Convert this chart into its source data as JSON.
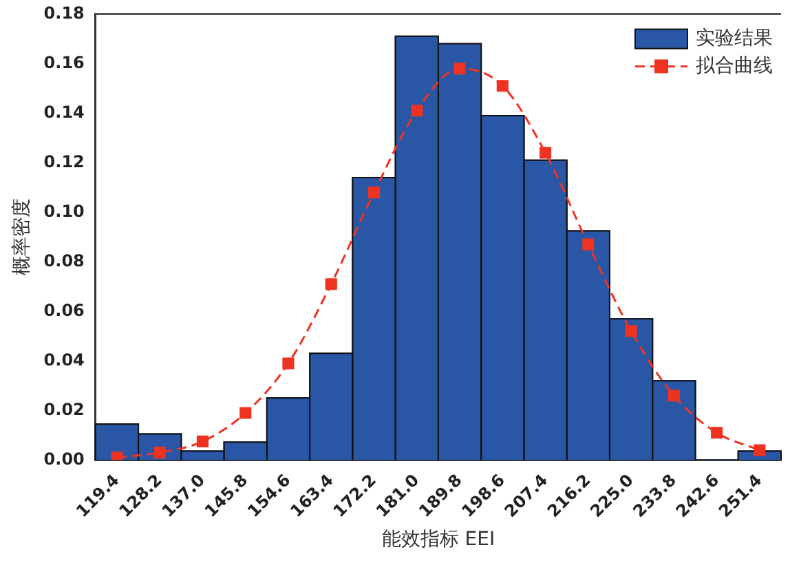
{
  "chart_data": {
    "type": "histogram",
    "xlabel": "能效指标 EEI",
    "ylabel": "概率密度",
    "bins": [
      115,
      123.8,
      132.6,
      141.4,
      150.2,
      159,
      167.8,
      176.6,
      185.4,
      194.2,
      203,
      211.8,
      220.6,
      229.4,
      238.2,
      247,
      255.8
    ],
    "series": [
      {
        "name": "实验结果",
        "color": "#2a56a6",
        "values": [
          0.0145,
          0.0105,
          0.0036,
          0.0072,
          0.025,
          0.043,
          0.114,
          0.171,
          0.168,
          0.139,
          0.121,
          0.0925,
          0.057,
          0.032,
          0,
          0.0036
        ]
      },
      {
        "name": "拟合曲线",
        "type": "line",
        "color": "#ee3322",
        "marker": "square",
        "line_style": "dashed",
        "x": [
          119.4,
          128.2,
          137,
          145.8,
          154.6,
          163.4,
          172.2,
          181,
          189.8,
          198.6,
          207.4,
          216.2,
          225,
          233.8,
          242.6,
          251.4
        ],
        "values": [
          0.001,
          0.003,
          0.0075,
          0.019,
          0.039,
          0.071,
          0.108,
          0.141,
          0.158,
          0.151,
          0.124,
          0.087,
          0.052,
          0.026,
          0.011,
          0.004
        ]
      }
    ],
    "xlim": [
      115,
      255.8
    ],
    "xticks": [
      119.4,
      128.2,
      {
        "value": 137,
        "label": "137.0"
      },
      145.8,
      154.6,
      163.4,
      172.2,
      {
        "value": 181,
        "label": "181.0"
      },
      189.8,
      198.6,
      207.4,
      216.2,
      {
        "value": 225,
        "label": "225.0"
      },
      233.8,
      242.6,
      251.4
    ],
    "ylim": [
      0,
      0.18
    ],
    "yticks": [
      {
        "value": 0,
        "label": "0.00"
      },
      {
        "value": 0.02,
        "label": "0.02"
      },
      {
        "value": 0.04,
        "label": "0.04"
      },
      {
        "value": 0.06,
        "label": "0.06"
      },
      {
        "value": 0.08,
        "label": "0.08"
      },
      {
        "value": 0.1,
        "label": "0.10"
      },
      {
        "value": 0.12,
        "label": "0.12"
      },
      {
        "value": 0.14,
        "label": "0.14"
      },
      {
        "value": 0.16,
        "label": "0.16"
      },
      {
        "value": 0.18,
        "label": "0.18"
      }
    ],
    "grid": false,
    "legend": "top right"
  }
}
